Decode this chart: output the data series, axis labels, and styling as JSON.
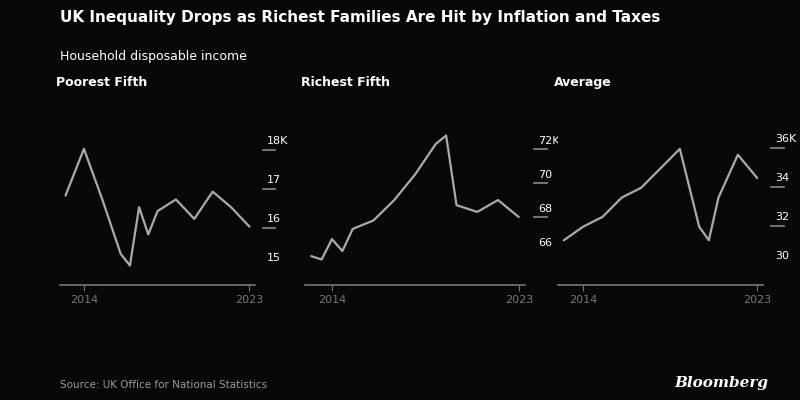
{
  "title": "UK Inequality Drops as Richest Families Are Hit by Inflation and Taxes",
  "subtitle": "Household disposable income",
  "source": "Source: UK Office for National Statistics",
  "branding": "Bloomberg",
  "bg_color": "#080808",
  "line_color": "#aaaaaa",
  "text_color": "#ffffff",
  "axis_color": "#777777",
  "tick_dash_color": "#888888",
  "panels": [
    {
      "label": "Poorest Fifth",
      "x": [
        2013,
        2014,
        2015,
        2016,
        2016.5,
        2017,
        2017.5,
        2018,
        2019,
        2020,
        2021,
        2022,
        2023
      ],
      "y": [
        16.6,
        17.8,
        16.5,
        15.1,
        14.8,
        16.3,
        15.6,
        16.2,
        16.5,
        16.0,
        16.7,
        16.3,
        15.8
      ],
      "yticks": [
        15,
        16,
        17,
        18
      ],
      "ytick_labels": [
        "15",
        "16",
        "17",
        "18K"
      ],
      "ylim": [
        14.3,
        18.8
      ],
      "xtick_labels": [
        "2014",
        "2023"
      ]
    },
    {
      "label": "Richest Fifth",
      "x": [
        2013,
        2013.5,
        2014,
        2014.5,
        2015,
        2016,
        2017,
        2018,
        2019,
        2019.5,
        2020,
        2021,
        2022,
        2023
      ],
      "y": [
        65.2,
        65.0,
        66.2,
        65.5,
        66.8,
        67.3,
        68.5,
        70.0,
        71.8,
        72.3,
        68.2,
        67.8,
        68.5,
        67.5
      ],
      "yticks": [
        66,
        68,
        70,
        72
      ],
      "ytick_labels": [
        "66",
        "68",
        "70",
        "72K"
      ],
      "ylim": [
        63.5,
        73.8
      ],
      "xtick_labels": [
        "2014",
        "2023"
      ]
    },
    {
      "label": "Average",
      "x": [
        2013,
        2014,
        2015,
        2015.5,
        2016,
        2017,
        2018,
        2019,
        2020,
        2020.5,
        2021,
        2022,
        2023
      ],
      "y": [
        30.8,
        31.5,
        32.0,
        32.5,
        33.0,
        33.5,
        34.5,
        35.5,
        31.5,
        30.8,
        33.0,
        35.2,
        34.0
      ],
      "yticks": [
        30,
        32,
        34,
        36
      ],
      "ytick_labels": [
        "30",
        "32",
        "34",
        "36K"
      ],
      "ylim": [
        28.5,
        37.5
      ],
      "xtick_labels": [
        "2014",
        "2023"
      ]
    }
  ],
  "title_fontsize": 11,
  "subtitle_fontsize": 9,
  "label_fontsize": 9,
  "tick_fontsize": 8,
  "source_fontsize": 7.5,
  "brand_fontsize": 11
}
